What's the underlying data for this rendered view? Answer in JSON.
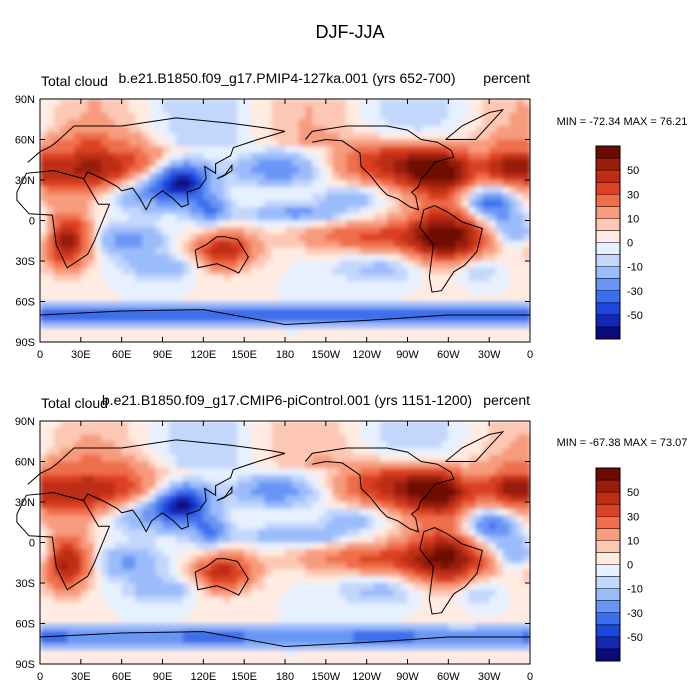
{
  "figure": {
    "title": "DJF-JJA"
  },
  "colors": {
    "palette": [
      "#0a0a78",
      "#1428b4",
      "#1e46dc",
      "#3c6eeb",
      "#6996f5",
      "#9bbcfa",
      "#c3d7fc",
      "#e6f0ff",
      "#ffebe1",
      "#fcc8b4",
      "#f79b7d",
      "#ef6e4b",
      "#dc4123",
      "#be2d14",
      "#961e0a",
      "#6e0a05"
    ]
  },
  "chart_data": [
    {
      "type": "heatmap",
      "panel": "top",
      "variable_label": "Total cloud",
      "case_label": "b.e21.B1850.f09_g17.PMIP4-127ka.001 (yrs 652-700)",
      "units_label": "percent",
      "min": -72.34,
      "max": 76.21,
      "minmax_label": "MIN = -72.34 MAX =  76.21",
      "x_ticks": [
        "0",
        "30E",
        "60E",
        "90E",
        "120E",
        "150E",
        "180",
        "150W",
        "120W",
        "90W",
        "60W",
        "30W",
        "0"
      ],
      "y_ticks": [
        "90N",
        "60N",
        "30N",
        "0",
        "30S",
        "60S",
        "90S"
      ],
      "xlim": [
        0,
        360
      ],
      "ylim": [
        -90,
        90
      ],
      "colorbar_labels": [
        "50",
        "30",
        "10",
        "0",
        "-10",
        "-30",
        "-50"
      ],
      "colorbar_levels": [
        -70,
        -60,
        -50,
        -40,
        -30,
        -20,
        -10,
        -5,
        0,
        5,
        10,
        20,
        30,
        40,
        50,
        60,
        70
      ]
    },
    {
      "type": "heatmap",
      "panel": "bottom",
      "variable_label": "Total cloud",
      "case_label": "b.e21.B1850.f09_g17.CMIP6-piControl.001 (yrs 1151-1200)",
      "units_label": "percent",
      "min": -67.38,
      "max": 73.07,
      "minmax_label": "MIN = -67.38 MAX =  73.07",
      "x_ticks": [
        "0",
        "30E",
        "60E",
        "90E",
        "120E",
        "150E",
        "180",
        "150W",
        "120W",
        "90W",
        "60W",
        "30W",
        "0"
      ],
      "y_ticks": [
        "90N",
        "60N",
        "30N",
        "0",
        "30S",
        "60S",
        "90S"
      ],
      "xlim": [
        0,
        360
      ],
      "ylim": [
        -90,
        90
      ],
      "colorbar_labels": [
        "50",
        "30",
        "10",
        "0",
        "-10",
        "-30",
        "-50"
      ],
      "colorbar_levels": [
        -70,
        -60,
        -50,
        -40,
        -30,
        -20,
        -10,
        -5,
        0,
        5,
        10,
        20,
        30,
        40,
        50,
        60,
        70
      ]
    }
  ]
}
